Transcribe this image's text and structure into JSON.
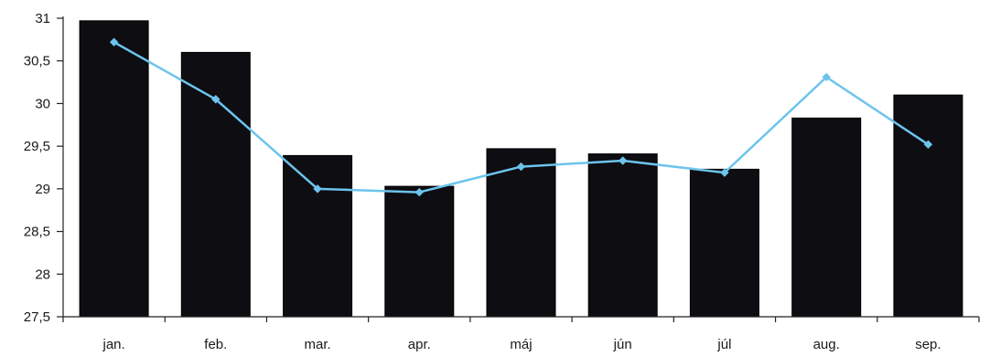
{
  "chart_data": {
    "type": "bar",
    "categories": [
      "jan.",
      "feb.",
      "mar.",
      "apr.",
      "máj",
      "jún",
      "júl",
      "aug.",
      "sep."
    ],
    "series": [
      {
        "type": "bar",
        "values": [
          30.97,
          30.6,
          29.39,
          29.03,
          29.47,
          29.41,
          29.23,
          29.83,
          30.1
        ],
        "color": "#0d0d12"
      },
      {
        "type": "line",
        "values": [
          30.72,
          30.05,
          29.0,
          28.96,
          29.26,
          29.33,
          29.19,
          30.31,
          29.52
        ],
        "color": "#6cc4ec",
        "marker": "diamond"
      }
    ],
    "ylim": [
      27.5,
      31
    ],
    "yticks": [
      "31",
      "30,5",
      "30",
      "29,5",
      "29",
      "28,5",
      "28",
      "27,5"
    ],
    "ytick_values": [
      31,
      30.5,
      30,
      29.5,
      29,
      28.5,
      28,
      27.5
    ],
    "title": "",
    "xlabel": "",
    "ylabel": "",
    "grid": false,
    "legend": "none"
  }
}
